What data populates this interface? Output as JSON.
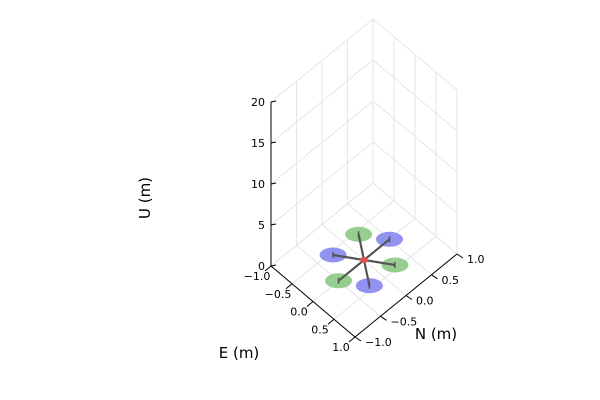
{
  "chart_data": {
    "type": "3d-scatter-plot",
    "title": "",
    "xlabel": "E (m)",
    "ylabel": "N (m)",
    "zlabel": "U (m)",
    "xlim": [
      -1.0,
      1.0
    ],
    "ylim": [
      -1.0,
      1.0
    ],
    "zlim": [
      0,
      20
    ],
    "xticks": [
      "−1.0",
      "−0.5",
      "0.0",
      "0.5",
      "1.0"
    ],
    "yticks": [
      "−1.0",
      "−0.5",
      "0.0",
      "0.5",
      "1.0"
    ],
    "zticks": [
      "0",
      "5",
      "10",
      "15",
      "20"
    ],
    "grid": true,
    "quadrotor": {
      "position": [
        0,
        0,
        0
      ],
      "arm_length": 0.5,
      "rotor_colors": [
        "#8c8cf0",
        "#8fcb88",
        "#8c8cf0",
        "#8fcb88",
        "#8c8cf0",
        "#8fcb88"
      ],
      "arm_color": "#555555",
      "body_color": "#e05050"
    }
  }
}
